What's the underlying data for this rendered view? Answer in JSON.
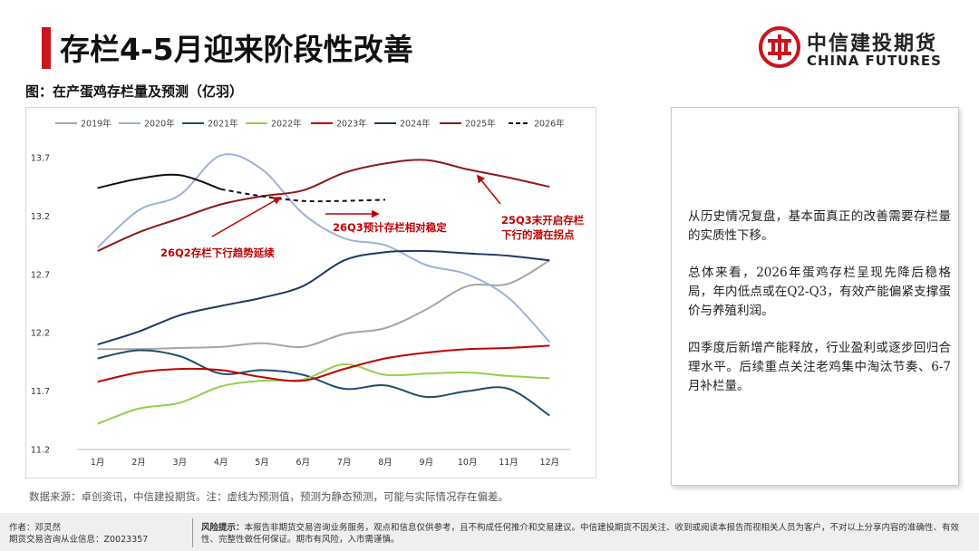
{
  "header": {
    "title": "存栏4-5月迎来阶段性改善",
    "logo_cn": "中信建投期货",
    "logo_en": "CHINA FUTURES"
  },
  "figure": {
    "caption": "图：在产蛋鸡存栏量及预测（亿羽）",
    "source": "数据来源：卓创资讯，中信建投期货。注：虚线为预测值，预测为静态预测，可能与实际情况存在偏差。"
  },
  "colors": {
    "accent": "#c8161d"
  },
  "chart_data": {
    "type": "line",
    "categories": [
      "1月",
      "2月",
      "3月",
      "4月",
      "5月",
      "6月",
      "7月",
      "8月",
      "9月",
      "10月",
      "11月",
      "12月"
    ],
    "ylim": [
      11.2,
      13.7
    ],
    "yticks": [
      "11.2",
      "11.7",
      "12.2",
      "12.7",
      "13.2",
      "13.7"
    ],
    "legend_position": "top",
    "series": [
      {
        "name": "2019年",
        "color": "#a6a6a6",
        "dash": false,
        "values": [
          12.06,
          12.06,
          12.07,
          12.08,
          12.11,
          12.08,
          12.19,
          12.24,
          12.4,
          12.6,
          12.62,
          12.82
        ]
      },
      {
        "name": "2020年",
        "color": "#9db3d5",
        "dash": false,
        "values": [
          12.93,
          13.25,
          13.38,
          13.72,
          13.6,
          13.22,
          13.01,
          12.95,
          12.78,
          12.7,
          12.5,
          12.12
        ]
      },
      {
        "name": "2021年",
        "color": "#1f4e6b",
        "dash": false,
        "values": [
          11.98,
          12.05,
          12.0,
          11.85,
          11.88,
          11.84,
          11.72,
          11.75,
          11.65,
          11.7,
          11.72,
          11.49
        ]
      },
      {
        "name": "2022年",
        "color": "#92d050",
        "dash": false,
        "values": [
          11.42,
          11.55,
          11.6,
          11.74,
          11.79,
          11.8,
          11.93,
          11.84,
          11.85,
          11.86,
          11.83,
          11.81
        ]
      },
      {
        "name": "2023年",
        "color": "#c00000",
        "dash": false,
        "values": [
          11.78,
          11.86,
          11.89,
          11.88,
          11.82,
          11.79,
          11.89,
          11.98,
          12.03,
          12.06,
          12.07,
          12.09
        ]
      },
      {
        "name": "2024年",
        "color": "#1f3864",
        "dash": false,
        "values": [
          12.1,
          12.21,
          12.35,
          12.43,
          12.5,
          12.6,
          12.82,
          12.89,
          12.9,
          12.88,
          12.86,
          12.82
        ]
      },
      {
        "name": "2025年",
        "color": "#8b1a1a",
        "dash": false,
        "values": [
          12.9,
          13.06,
          13.18,
          13.3,
          13.37,
          13.42,
          13.57,
          13.65,
          13.68,
          13.6,
          13.53,
          13.45
        ]
      },
      {
        "name": "2026年",
        "color": "#111111",
        "dash": true,
        "values": [
          13.44,
          13.52,
          13.55,
          13.43,
          13.37,
          13.33,
          13.33,
          13.34,
          null,
          null,
          null,
          null
        ]
      }
    ],
    "annotations": [
      {
        "text": "26Q2存栏下行趋势延续"
      },
      {
        "text": "26Q3预计存栏相对稳定"
      },
      {
        "text": "25Q3末开启存栏"
      },
      {
        "text": "下行的潜在拐点"
      }
    ]
  },
  "analysis": {
    "paragraphs": [
      "从历史情况复盘，基本面真正的改善需要存栏量的实质性下移。",
      "总体来看，2026年蛋鸡存栏呈现先降后稳格局，年内低点或在Q2-Q3，有效产能偏紧支撑蛋价与养殖利润。",
      "四季度后新增产能释放，行业盈利或逐步回归合理水平。后续重点关注老鸡集中淘汰节奏、6-7月补栏量。"
    ]
  },
  "footer": {
    "author": "作者：邓灵然",
    "license": "期货交易咨询从业信息：Z0023357",
    "risk_label": "风险提示：",
    "risk_text": "本报告非期货交易咨询业务服务，观点和信息仅供参考，且不构成任何推介和交易建议。中信建投期货不因关注、收到或阅读本报告而视相关人员为客户，不对以上分享内容的准确性、有效性、完整性做任何保证。期市有风险，入市需谨慎。"
  }
}
